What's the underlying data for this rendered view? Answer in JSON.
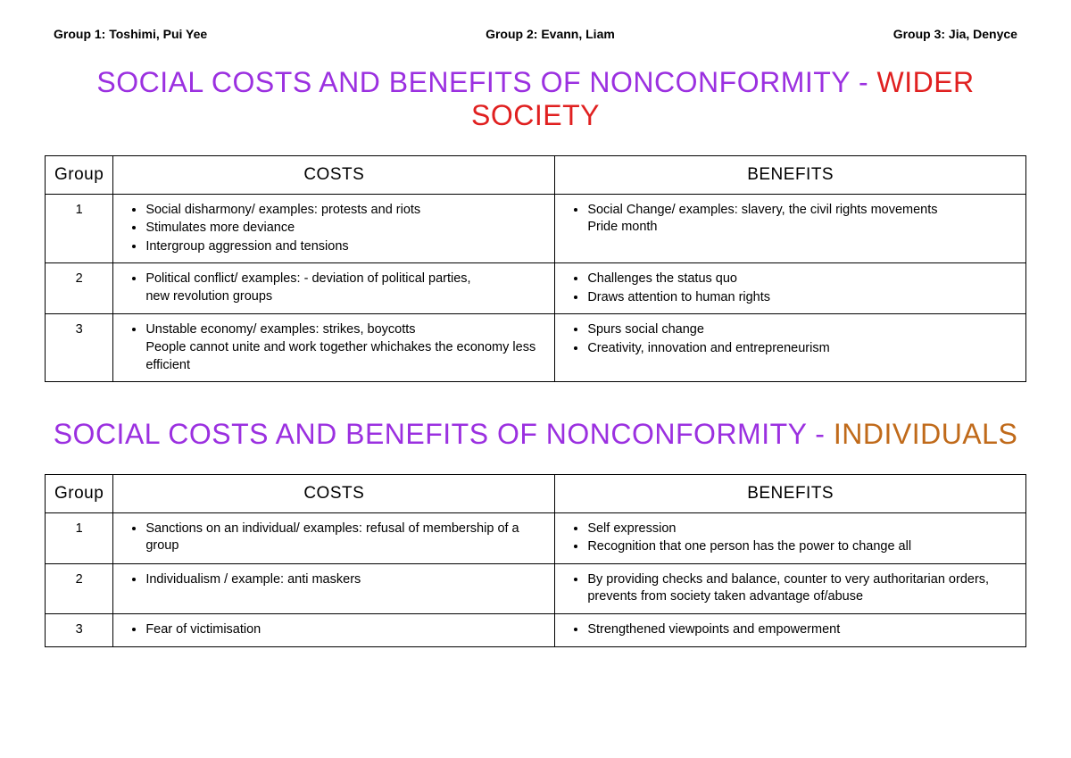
{
  "colors": {
    "purple": "#9b30e0",
    "red": "#e02020",
    "orange": "#c06a1a",
    "black": "#000000",
    "background": "#ffffff"
  },
  "header_groups": {
    "g1_label": "Group 1:",
    "g1_names": "Toshimi, Pui Yee",
    "g2_label": "Group 2:",
    "g2_names": "Evann, Liam",
    "g3_label": "Group 3:",
    "g3_names": "Jia, Denyce"
  },
  "title1": {
    "main": "SOCIAL COSTS AND BENEFITS OF NONCONFORMITY",
    "sep": " - ",
    "scope": "WIDER SOCIETY"
  },
  "title2": {
    "main": "SOCIAL COSTS AND BENEFITS OF NONCONFORMITY",
    "sep": " - ",
    "scope": "INDIVIDUALS"
  },
  "table_headers": {
    "group": "Group",
    "costs": "COSTS",
    "benefits": "BENEFITS"
  },
  "wider": {
    "r1": {
      "num": "1",
      "c1": "Social disharmony/ examples: protests and riots",
      "c2": "Stimulates more deviance",
      "c3": "Intergroup aggression and tensions",
      "b1": "Social Change/ examples: slavery, the civil rights movements",
      "b1_cont": "Pride month"
    },
    "r2": {
      "num": "2",
      "c1": "Political conflict/  examples: - deviation of political parties,",
      "c1_cont": "new revolution groups",
      "b1": "Challenges the status quo",
      "b2": "Draws attention to human rights"
    },
    "r3": {
      "num": "3",
      "c1": "Unstable economy/ examples: strikes, boycotts",
      "c1_cont": "People cannot unite and work together whichakes the economy less efficient",
      "b1": "Spurs social change",
      "b2": "Creativity, innovation and entrepreneurism"
    }
  },
  "indiv": {
    "r1": {
      "num": "1",
      "c1": "Sanctions on an individual/ examples: refusal of membership of a group",
      "b1": "Self expression",
      "b2": "Recognition that one person has the power to change all"
    },
    "r2": {
      "num": "2",
      "c1": "Individualism / example: anti maskers",
      "b1": "By providing checks and balance, counter to very authoritarian orders, prevents from society taken advantage of/abuse"
    },
    "r3": {
      "num": "3",
      "c1": "Fear of victimisation",
      "b1": "Strengthened viewpoints and empowerment"
    }
  }
}
